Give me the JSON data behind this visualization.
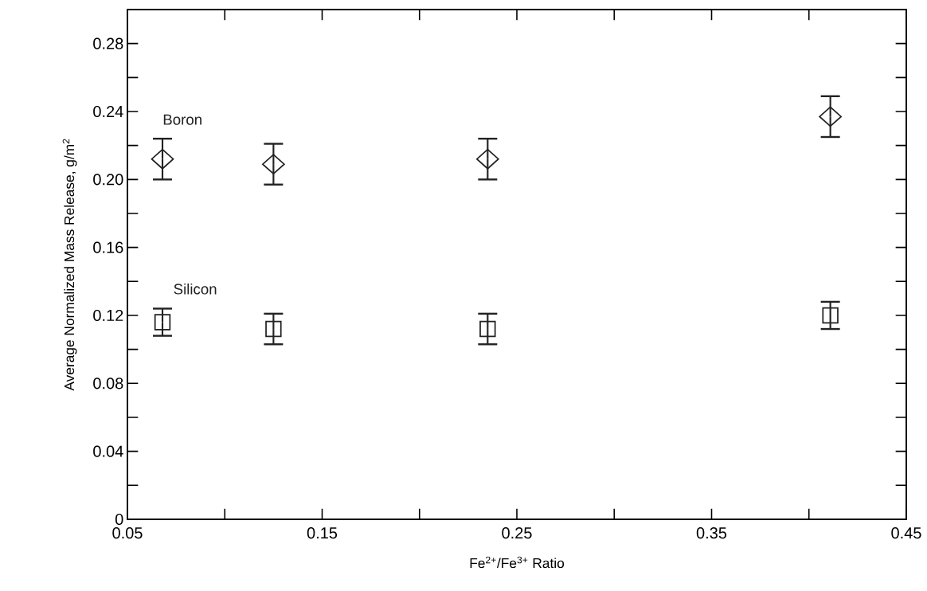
{
  "chart_data": {
    "type": "scatter",
    "xlabel": "Fe$^{2+}$/Fe$^{3+}$ Ratio",
    "ylabel": "Average Normalized Mass Release, g/m$^{2}$",
    "x": [
      0.068,
      0.125,
      0.235,
      0.411
    ],
    "series": [
      {
        "name": "Boron",
        "color": "#222222",
        "marker": "diamond",
        "values": [
          0.212,
          0.209,
          0.212,
          0.237
        ],
        "errors": [
          0.012,
          0.012,
          0.012,
          0.012
        ]
      },
      {
        "name": "Silicon",
        "color": "#222222",
        "marker": "square",
        "values": [
          0.116,
          0.112,
          0.112,
          0.12
        ],
        "errors": [
          0.008,
          0.009,
          0.009,
          0.008
        ]
      }
    ],
    "xlim": [
      0.05,
      0.45
    ],
    "ylim": [
      0,
      0.3
    ],
    "xticks": [
      0.05,
      {
        "value": 0.1,
        "label": null
      },
      0.15,
      {
        "value": 0.2,
        "label": null
      },
      0.25,
      {
        "value": 0.3,
        "label": null
      },
      0.35,
      {
        "value": 0.4,
        "label": null
      },
      0.45
    ],
    "yticks": [
      0,
      {
        "value": 0.02,
        "label": null
      },
      0.04,
      {
        "value": 0.06,
        "label": null
      },
      0.08,
      {
        "value": 0.1,
        "label": null
      },
      0.12,
      {
        "value": 0.14,
        "label": null
      },
      0.16,
      {
        "value": 0.18,
        "label": null
      },
      {
        "value": 0.2,
        "label": "0.20"
      },
      {
        "value": 0.22,
        "label": null
      },
      0.24,
      {
        "value": 0.26,
        "label": null
      },
      0.28
    ],
    "grid": false,
    "legend": false
  }
}
